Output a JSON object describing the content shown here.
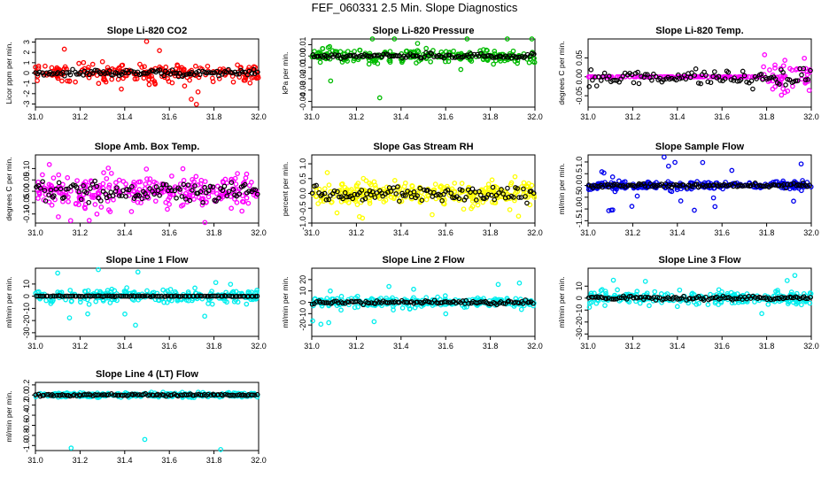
{
  "title": "FEF_060331  2.5 Min. Slope Diagnostics",
  "chart_data": [
    {
      "type": "scatter",
      "title": "Slope Li-820 CO2",
      "xlabel": "",
      "ylabel": "Licor ppm per min.",
      "color": "#ff0000",
      "xlim": [
        31.0,
        32.0
      ],
      "ylim": [
        -3.3,
        3.3
      ],
      "xticks": [
        "31.0",
        "31.2",
        "31.4",
        "31.6",
        "31.8",
        "32.0"
      ],
      "yticks": [
        "-3",
        "-2",
        "-1",
        "0",
        "1",
        "2",
        "3"
      ],
      "spread": 0.85,
      "tail": 3.2,
      "late_spread": 0.6,
      "black_spread": 0.3,
      "n": 230,
      "seed": 11
    },
    {
      "type": "scatter",
      "title": "Slope Li-820 Pressure",
      "xlabel": "",
      "ylabel": "kPa per min.",
      "color": "#00bb00",
      "xlim": [
        31.0,
        32.0
      ],
      "ylim": [
        -0.045,
        0.015
      ],
      "xticks": [
        "31.0",
        "31.2",
        "31.4",
        "31.6",
        "31.8",
        "32.0"
      ],
      "yticks": [
        "-0.04",
        "-0.03",
        "-0.02",
        "-0.01",
        "0.00",
        "0.01"
      ],
      "spread": 0.006,
      "tail": 0.04,
      "late_spread": 0.005,
      "black_spread": 0.002,
      "n": 230,
      "seed": 23
    },
    {
      "type": "scatter",
      "title": "Slope Li-820 Temp.",
      "xlabel": "",
      "ylabel": "degrees C per min.",
      "color": "#ff00ff",
      "xlim": [
        31.0,
        32.0
      ],
      "ylim": [
        -0.08,
        0.1
      ],
      "xticks": [
        "31.0",
        "31.2",
        "31.4",
        "31.6",
        "31.8",
        "32.0"
      ],
      "yticks": [
        "-0.05",
        "0.00",
        "0.05"
      ],
      "spread": 0.0,
      "tail": 0.0,
      "late_spread": 0.045,
      "late_start": 31.78,
      "black_spread": 0.02,
      "n": 200,
      "seed": 37
    },
    {
      "type": "scatter",
      "title": "Slope Amb. Box Temp.",
      "xlabel": "",
      "ylabel": "degrees C per min.",
      "color": "#ff00ff",
      "xlim": [
        31.0,
        32.0
      ],
      "ylim": [
        -0.14,
        0.16
      ],
      "xticks": [
        "31.0",
        "31.2",
        "31.4",
        "31.6",
        "31.8",
        "32.0"
      ],
      "yticks": [
        "-0.10",
        "-0.05",
        "0.00",
        "0.05",
        "0.10"
      ],
      "spread": 0.06,
      "tail": 0.14,
      "late_spread": 0.05,
      "black_spread": 0.04,
      "n": 300,
      "seed": 41
    },
    {
      "type": "scatter",
      "title": "Slope Gas Stream RH",
      "xlabel": "",
      "ylabel": "percent per min.",
      "color": "#ffff00",
      "xlim": [
        31.0,
        32.0
      ],
      "ylim": [
        -1.0,
        1.3
      ],
      "xticks": [
        "31.0",
        "31.2",
        "31.4",
        "31.6",
        "31.8",
        "32.0"
      ],
      "yticks": [
        "-1.0",
        "-0.5",
        "0.0",
        "0.5",
        "1.0"
      ],
      "spread": 0.35,
      "tail": 0.9,
      "late_spread": 0.3,
      "black_spread": 0.25,
      "n": 320,
      "seed": 53
    },
    {
      "type": "scatter",
      "title": "Slope Sample Flow",
      "xlabel": "",
      "ylabel": "ml/min per min.",
      "color": "#0000ee",
      "xlim": [
        31.0,
        32.0
      ],
      "ylim": [
        -1.6,
        1.3
      ],
      "xticks": [
        "31.0",
        "31.2",
        "31.4",
        "31.6",
        "31.8",
        "32.0"
      ],
      "yticks": [
        "-1.5",
        "-1.0",
        "-0.5",
        "0.0",
        "0.5",
        "1.0"
      ],
      "spread": 0.15,
      "tail": 1.3,
      "late_spread": 0.12,
      "black_spread": 0.08,
      "n": 280,
      "seed": 67
    },
    {
      "type": "scatter",
      "title": "Slope Line 1 Flow",
      "xlabel": "",
      "ylabel": "ml/min per min.",
      "color": "#00eeee",
      "xlim": [
        31.0,
        32.0
      ],
      "ylim": [
        -33,
        23
      ],
      "xticks": [
        "31.0",
        "31.2",
        "31.4",
        "31.6",
        "31.8",
        "32.0"
      ],
      "yticks": [
        "-30",
        "-20",
        "-10",
        "0",
        "10"
      ],
      "spread": 5,
      "tail": 25,
      "late_spread": 1.5,
      "black_spread": 0.3,
      "n": 260,
      "seed": 71
    },
    {
      "type": "scatter",
      "title": "Slope Line 2 Flow",
      "xlabel": "",
      "ylabel": "ml/min per min.",
      "color": "#00eeee",
      "xlim": [
        31.0,
        32.0
      ],
      "ylim": [
        -30,
        30
      ],
      "xticks": [
        "31.0",
        "31.2",
        "31.4",
        "31.6",
        "31.8",
        "32.0"
      ],
      "yticks": [
        "-20",
        "-10",
        "0",
        "10",
        "20"
      ],
      "spread": 4,
      "tail": 20,
      "late_spread": 1.5,
      "black_spread": 1.5,
      "n": 260,
      "seed": 83
    },
    {
      "type": "scatter",
      "title": "Slope Line 3 Flow",
      "xlabel": "",
      "ylabel": "ml/min per min.",
      "color": "#00eeee",
      "xlim": [
        31.0,
        32.0
      ],
      "ylim": [
        -32,
        25
      ],
      "xticks": [
        "31.0",
        "31.2",
        "31.4",
        "31.6",
        "31.8",
        "32.0"
      ],
      "yticks": [
        "-30",
        "-20",
        "-10",
        "0",
        "10"
      ],
      "spread": 5,
      "tail": 22,
      "late_spread": 1.5,
      "black_spread": 1.5,
      "n": 260,
      "seed": 97
    },
    {
      "type": "scatter",
      "title": "Slope Line 4 (LT) Flow",
      "xlabel": "",
      "ylabel": "ml/min per min.",
      "color": "#00eeee",
      "xlim": [
        31.0,
        32.0
      ],
      "ylim": [
        -1.1,
        0.25
      ],
      "xticks": [
        "31.0",
        "31.2",
        "31.4",
        "31.6",
        "31.8",
        "32.0"
      ],
      "yticks": [
        "-1.0",
        "-0.8",
        "-0.6",
        "-0.4",
        "-0.2",
        "0.0",
        "0.2"
      ],
      "spread": 0.04,
      "tail": 0.05,
      "late_spread": 0.04,
      "black_spread": 0.02,
      "n": 280,
      "seed": 103,
      "outliers": [
        [
          31.16,
          -1.05
        ],
        [
          31.49,
          -0.88
        ],
        [
          31.83,
          -1.08
        ]
      ]
    }
  ]
}
